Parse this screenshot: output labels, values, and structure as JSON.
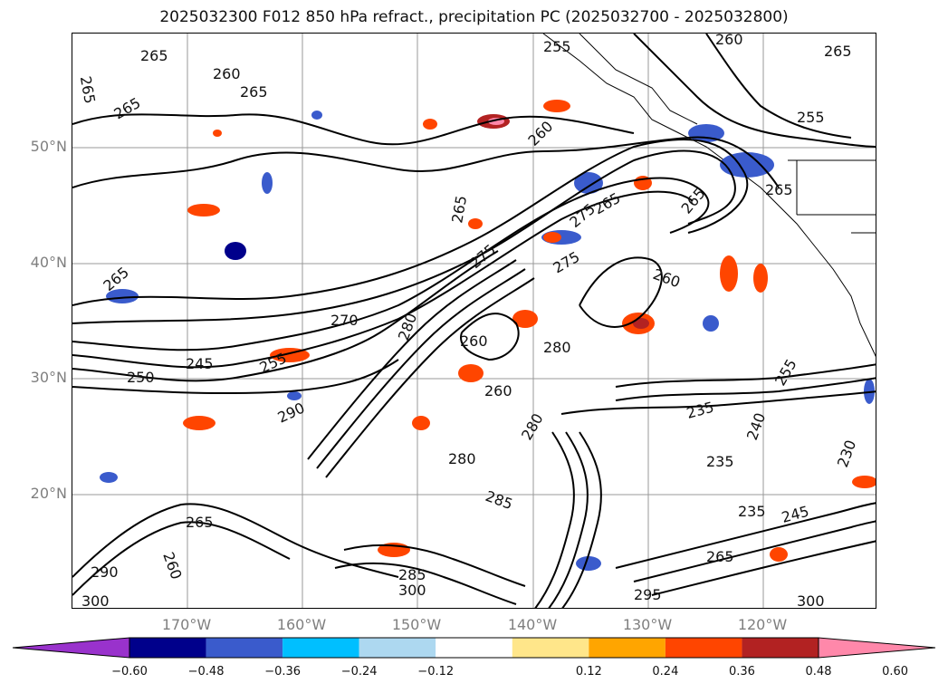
{
  "title": "2025032300 F012 850 hPa refract., precipitation PC (2025032700 - 2025032800)",
  "map": {
    "lat_labels": [
      "50°N",
      "40°N",
      "30°N",
      "20°N"
    ],
    "lon_labels": [
      "170°W",
      "160°W",
      "150°W",
      "140°W",
      "130°W",
      "120°W"
    ],
    "contour_labels": [
      "265",
      "260",
      "265",
      "265",
      "265",
      "260",
      "255",
      "260",
      "265",
      "265",
      "255",
      "265",
      "265",
      "275",
      "275",
      "275",
      "265",
      "260",
      "265",
      "270",
      "280",
      "280",
      "260",
      "260",
      "245",
      "250",
      "255",
      "235",
      "235",
      "240",
      "230",
      "255",
      "290",
      "280",
      "280",
      "285",
      "265",
      "260",
      "235",
      "245",
      "285",
      "300",
      "295",
      "265",
      "300",
      "290",
      "300"
    ]
  },
  "colorbar": {
    "ticks": [
      "−0.60",
      "−0.48",
      "−0.36",
      "−0.24",
      "−0.12",
      "0.12",
      "0.24",
      "0.36",
      "0.48",
      "0.60"
    ],
    "colors": [
      "#9932cc",
      "#00008b",
      "#3a5bcc",
      "#00bfff",
      "#add8f0",
      "#ffffff",
      "#ffe68a",
      "#ffa500",
      "#ff4500",
      "#b22222",
      "#ff88aa"
    ]
  }
}
